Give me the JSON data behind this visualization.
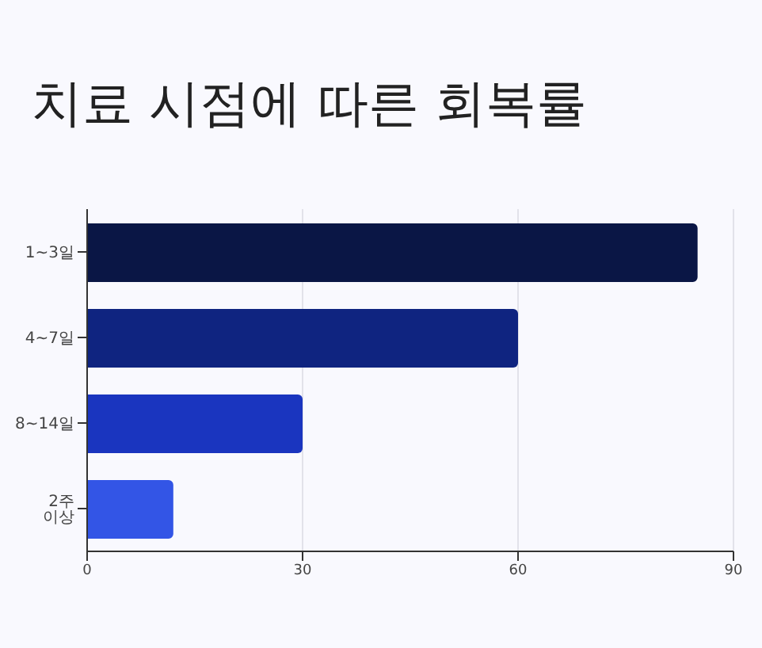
{
  "chart_data": {
    "type": "bar",
    "orientation": "horizontal",
    "title": "치료 시점에 따른 회복률",
    "categories": [
      "1~3일",
      "4~7일",
      "8~14일",
      "2주 이상"
    ],
    "values": [
      85,
      60,
      30,
      12
    ],
    "colors": [
      "#0a1645",
      "#0f2480",
      "#1a35bf",
      "#3355e6"
    ],
    "xlim": [
      0,
      90
    ],
    "xticks": [
      0,
      30,
      60,
      90
    ],
    "grid": "x"
  }
}
